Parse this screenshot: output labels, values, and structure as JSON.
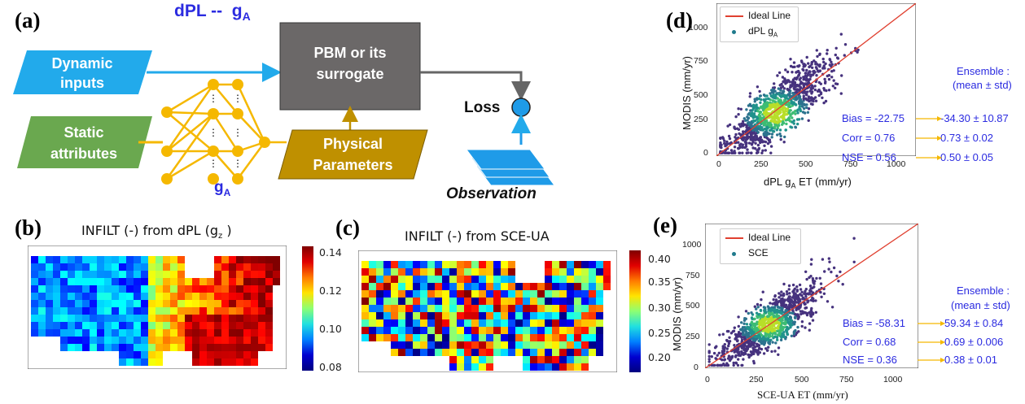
{
  "panel_a": {
    "label": "(a)",
    "title": "dPL --  gA",
    "title_main": "dPL --  g",
    "title_sub": "A",
    "dynamic_inputs": "Dynamic inputs",
    "dyn_line1": "Dynamic",
    "dyn_line2": "inputs",
    "static_line1": "Static",
    "static_line2": "attributes",
    "pbm_line1": "PBM or its",
    "pbm_line2": "surrogate",
    "phys_line1": "Physical",
    "phys_line2": "Parameters",
    "nn_label_main": "g",
    "nn_label_sub": "A",
    "loss": "Loss",
    "observation": "Observation",
    "colors": {
      "input_blue": "#22aaeb",
      "static_green": "#6aa84f",
      "pbm_gray": "#6b6868",
      "phys_gold": "#bf9000",
      "nn_yellow": "#f5b800",
      "obs_blue": "#1f9be8"
    }
  },
  "panel_b": {
    "label": "(b)",
    "title_pre": "INFILT (-) from dPL (g",
    "title_sub": "z",
    "title_post": " )",
    "colorbar_ticks": [
      "0.14",
      "0.12",
      "0.10",
      "0.08"
    ]
  },
  "panel_c": {
    "label": "(c)",
    "title": "INFILT (-) from SCE-UA",
    "colorbar_ticks": [
      "0.40",
      "0.35",
      "0.30",
      "0.25",
      "0.20"
    ]
  },
  "panel_d": {
    "label": "(d)",
    "ylabel": "MODIS (mm/yr)",
    "xlabel_pre": "dPL g",
    "xlabel_sub": "A",
    "xlabel_post": " ET (mm/yr)",
    "legend_line": "Ideal Line",
    "legend_pts_pre": "dPL g",
    "legend_pts_sub": "A",
    "yticks": [
      "1000",
      "750",
      "500",
      "250",
      "0"
    ],
    "xticks": [
      "0",
      "250",
      "500",
      "750",
      "1000"
    ],
    "ensemble_l1": "Ensemble :",
    "ensemble_l2": "(mean ± std)",
    "bias": "Bias = -22.75",
    "corr": "Corr = 0.76",
    "nse": "NSE = 0.56",
    "bias_ens": "-34.30 ± 10.87",
    "corr_ens": "0.73  ± 0.02",
    "nse_ens": "0.50  ± 0.05"
  },
  "panel_e": {
    "label": "(e)",
    "ylabel": "MODIS (mm/yr)",
    "xlabel": "SCE-UA ET (mm/yr)",
    "legend_line": "Ideal Line",
    "legend_pts": "SCE",
    "yticks": [
      "1000",
      "750",
      "500",
      "250",
      "0"
    ],
    "xticks": [
      "0",
      "250",
      "500",
      "750",
      "1000"
    ],
    "ensemble_l1": "Ensemble :",
    "ensemble_l2": "(mean ± std)",
    "bias": "Bias = -58.31",
    "corr": "Corr = 0.68",
    "nse": "NSE = 0.36",
    "bias_ens": "59.34 ± 0.84",
    "corr_ens": "0.69  ± 0.006",
    "nse_ens": "0.38  ± 0.01"
  },
  "chart_data": [
    {
      "type": "scatter",
      "panel": "d",
      "ylabel": "MODIS (mm/yr)",
      "xlabel": "dPL gA ET (mm/yr)",
      "xlim": [
        0,
        1100
      ],
      "ylim": [
        0,
        1100
      ],
      "series": [
        {
          "name": "Ideal Line",
          "x": [
            0,
            1100
          ],
          "y": [
            0,
            1100
          ]
        },
        {
          "name": "dPL gA"
        }
      ]
    },
    {
      "type": "scatter",
      "panel": "e",
      "ylabel": "MODIS (mm/yr)",
      "xlabel": "SCE-UA ET (mm/yr)",
      "xlim": [
        0,
        1100
      ],
      "ylim": [
        0,
        1100
      ],
      "series": [
        {
          "name": "Ideal Line",
          "x": [
            0,
            1100
          ],
          "y": [
            0,
            1100
          ]
        },
        {
          "name": "SCE"
        }
      ]
    }
  ]
}
